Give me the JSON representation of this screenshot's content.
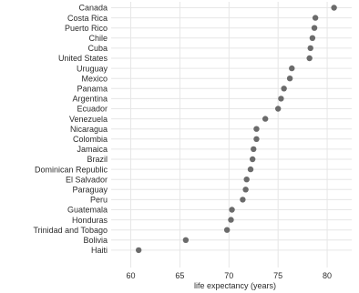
{
  "chart_data": {
    "type": "scatter",
    "title": "",
    "xlabel": "life expectancy (years)",
    "ylabel": "",
    "xlim": [
      58,
      82.5
    ],
    "xticks": [
      60,
      65,
      70,
      75,
      80
    ],
    "grid": true,
    "legend": "none",
    "point_color": "#6b6b6b",
    "categories": [
      "Canada",
      "Costa Rica",
      "Puerto Rico",
      "Chile",
      "Cuba",
      "United States",
      "Uruguay",
      "Mexico",
      "Panama",
      "Argentina",
      "Ecuador",
      "Venezuela",
      "Nicaragua",
      "Colombia",
      "Jamaica",
      "Brazil",
      "Dominican Republic",
      "El Salvador",
      "Paraguay",
      "Peru",
      "Guatemala",
      "Honduras",
      "Trinidad and Tobago",
      "Bolivia",
      "Haiti"
    ],
    "values": [
      80.7,
      78.8,
      78.7,
      78.5,
      78.3,
      78.2,
      76.4,
      76.2,
      75.6,
      75.3,
      75.0,
      73.7,
      72.8,
      72.8,
      72.5,
      72.4,
      72.2,
      71.8,
      71.7,
      71.4,
      70.3,
      70.2,
      69.8,
      65.6,
      60.8
    ]
  }
}
